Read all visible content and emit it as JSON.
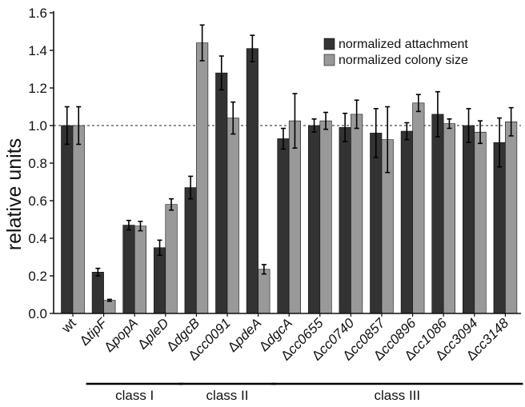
{
  "chart_data": {
    "type": "bar",
    "title": "",
    "xlabel": "",
    "ylabel": "relative units",
    "ylim": [
      0,
      1.6
    ],
    "yticks": [
      "0.0",
      "0.2",
      "0.4",
      "0.6",
      "0.8",
      "1.0",
      "1.2",
      "1.4",
      "1.6"
    ],
    "reference_line": 1.0,
    "legend_position": "top-right",
    "categories": [
      {
        "prefix": "",
        "name": "wt"
      },
      {
        "prefix": "Δ",
        "name": "tipF"
      },
      {
        "prefix": "Δ",
        "name": "popA"
      },
      {
        "prefix": "Δ",
        "name": "pleD"
      },
      {
        "prefix": "Δ",
        "name": "dgcB"
      },
      {
        "prefix": "Δ",
        "name": "cc0091"
      },
      {
        "prefix": "Δ",
        "name": "pdeA"
      },
      {
        "prefix": "Δ",
        "name": "dgcA"
      },
      {
        "prefix": "Δ",
        "name": "cc0655"
      },
      {
        "prefix": "Δ",
        "name": "cc0740"
      },
      {
        "prefix": "Δ",
        "name": "cc0857"
      },
      {
        "prefix": "Δ",
        "name": "cc0896"
      },
      {
        "prefix": "Δ",
        "name": "cc1086"
      },
      {
        "prefix": "Δ",
        "name": "cc3094"
      },
      {
        "prefix": "Δ",
        "name": "cc3148"
      }
    ],
    "series": [
      {
        "name": "normalized attachment",
        "color": "#333333",
        "values": [
          1.0,
          0.22,
          0.47,
          0.35,
          0.67,
          1.28,
          1.41,
          0.93,
          1.0,
          0.99,
          0.96,
          0.97,
          1.06,
          1.0,
          0.91
        ],
        "errors": [
          0.1,
          0.02,
          0.025,
          0.04,
          0.06,
          0.09,
          0.07,
          0.055,
          0.035,
          0.075,
          0.13,
          0.045,
          0.12,
          0.09,
          0.13
        ]
      },
      {
        "name": "normalized colony size",
        "color": "#999999",
        "values": [
          1.0,
          0.07,
          0.465,
          0.58,
          1.44,
          1.04,
          0.235,
          1.025,
          1.025,
          1.06,
          0.925,
          1.12,
          1.01,
          0.965,
          1.02
        ],
        "errors": [
          0.1,
          0.005,
          0.025,
          0.03,
          0.095,
          0.085,
          0.025,
          0.145,
          0.045,
          0.075,
          0.175,
          0.045,
          0.025,
          0.06,
          0.075
        ]
      }
    ],
    "groups": [
      {
        "label": "class I",
        "from": 1,
        "to": 3
      },
      {
        "label": "class II",
        "from": 4,
        "to": 6
      },
      {
        "label": "class III",
        "from": 7,
        "to": 14
      }
    ]
  }
}
